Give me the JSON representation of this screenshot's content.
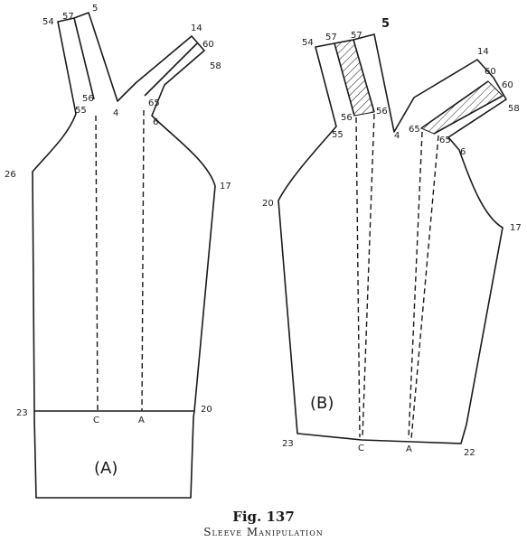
{
  "figure": {
    "caption_title": "Fig. 137",
    "caption_subtitle": "Sleeve Manipulation"
  },
  "panel_a": {
    "label": "(A)",
    "points": {
      "p54": "54",
      "p57": "57",
      "p5": "5",
      "p14": "14",
      "p60": "60",
      "p58": "58",
      "p56": "56",
      "p55": "55",
      "p4": "4",
      "p65": "65",
      "p6": "6",
      "p26": "26",
      "p17": "17",
      "p23": "23",
      "p20": "20",
      "pC": "C",
      "pA": "A"
    }
  },
  "panel_b": {
    "label": "(B)",
    "points": {
      "p54": "54",
      "p57a": "57",
      "p57b": "57",
      "p5": "5",
      "p14": "14",
      "p60a": "60",
      "p60b": "60",
      "p58": "58",
      "p56a": "56",
      "p56b": "56",
      "p55": "55",
      "p4": "4",
      "p65a": "65",
      "p65b": "65",
      "p6": "6",
      "p20": "20",
      "p17": "17",
      "p23": "23",
      "p22": "22",
      "pC": "C",
      "pA": "A"
    }
  },
  "colors": {
    "ink": "#1a1a1a",
    "paper": "#ffffff"
  }
}
